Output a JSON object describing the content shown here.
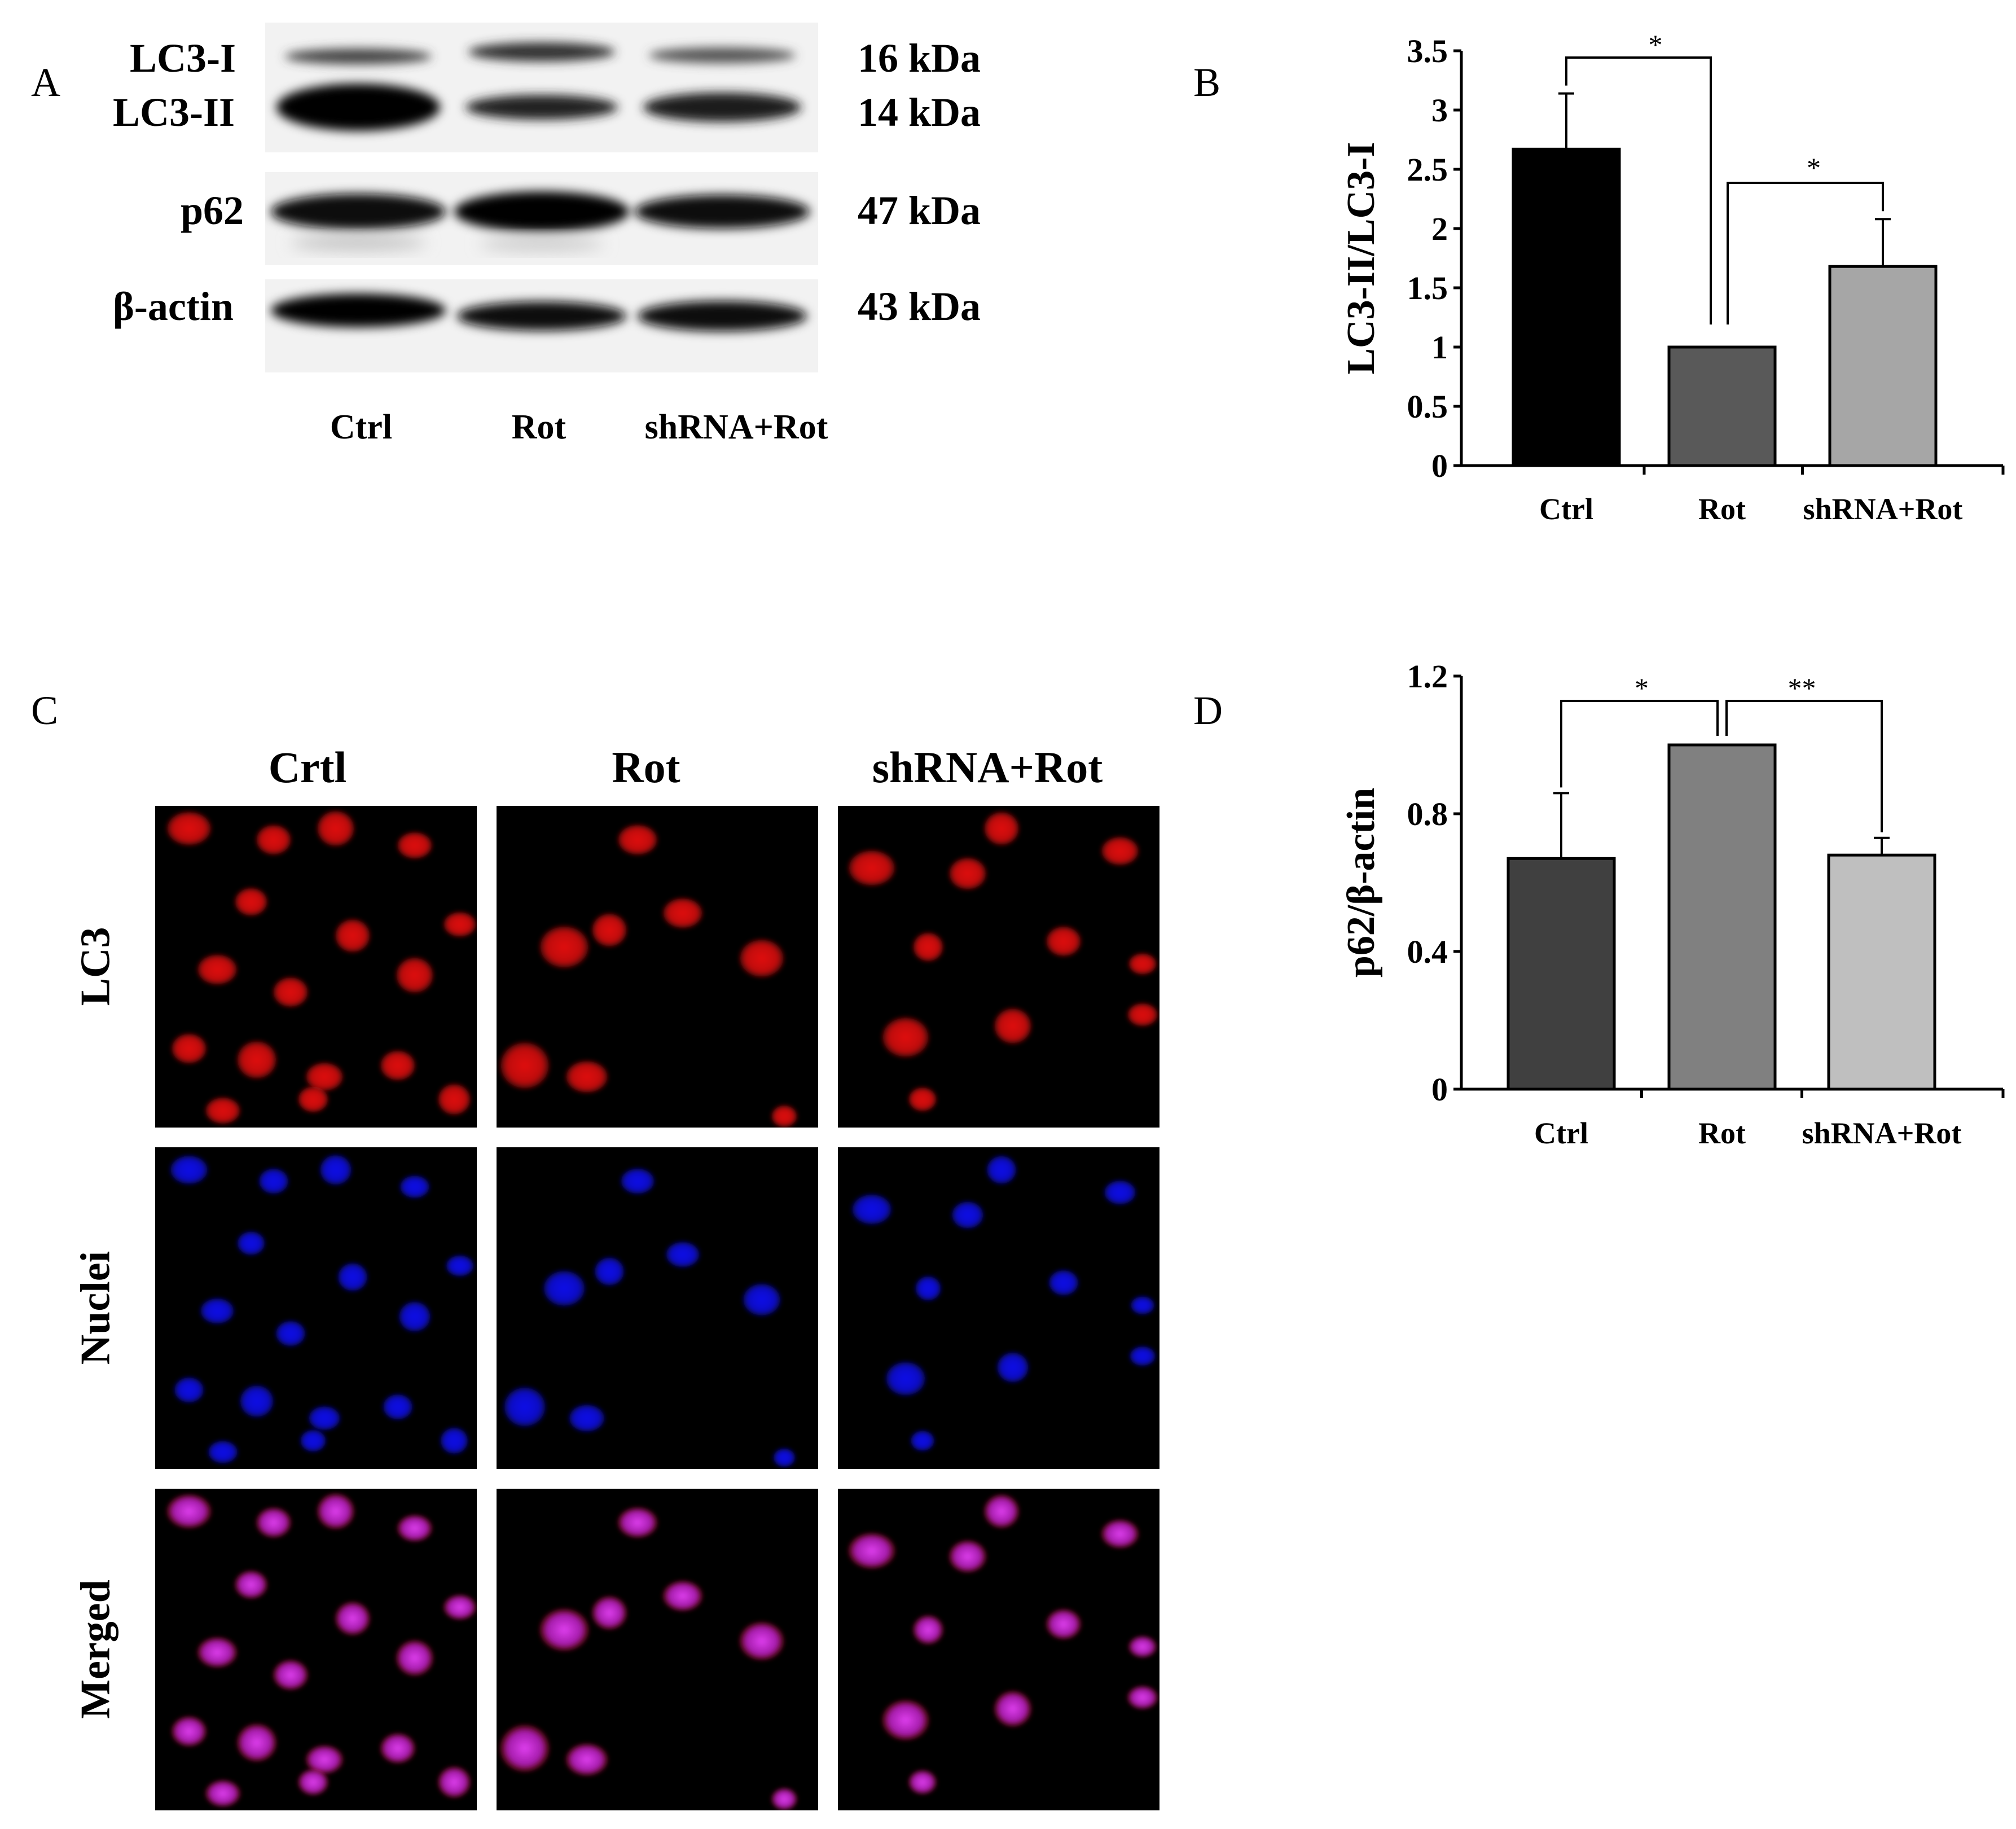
{
  "panel_letters": {
    "a": "A",
    "b": "B",
    "c": "C",
    "d": "D"
  },
  "blot": {
    "row_labels": [
      "LC3-I",
      "LC3-II",
      "p62",
      "β-actin"
    ],
    "sizes": [
      "16 kDa",
      "14 kDa",
      "47 kDa",
      "43 kDa"
    ],
    "lanes": [
      "Ctrl",
      "Rot",
      "shRNA+Rot"
    ]
  },
  "immunofluorescence": {
    "columns": [
      "Crtl",
      "Rot",
      "shRNA+Rot"
    ],
    "rows": [
      "LC3",
      "Nuclei",
      "Merged"
    ],
    "colors": {
      "lc3": "#e01010",
      "nuclei": "#1010e8",
      "merged": "#c020c8"
    }
  },
  "chart_data": [
    {
      "panel": "B",
      "type": "bar",
      "categories": [
        "Ctrl",
        "Rot",
        "shRNA+Rot"
      ],
      "values": [
        2.67,
        1.0,
        1.68
      ],
      "errors": [
        0.47,
        0.0,
        0.4
      ],
      "bar_colors": [
        "#000000",
        "#595959",
        "#a6a6a6"
      ],
      "ylabel": "LC3-II/LC3-I",
      "ylim": [
        0,
        3.5
      ],
      "yticks": [
        "0",
        "0.5",
        "1",
        "1.5",
        "2",
        "2.5",
        "3",
        "3.5"
      ],
      "ytick_values": [
        0,
        0.5,
        1,
        1.5,
        2,
        2.5,
        3,
        3.5
      ],
      "significance": [
        {
          "from": "Ctrl",
          "to": "Rot",
          "label": "*"
        },
        {
          "from": "Rot",
          "to": "shRNA+Rot",
          "label": "*"
        }
      ]
    },
    {
      "panel": "D",
      "type": "bar",
      "categories": [
        "Ctrl",
        "Rot",
        "shRNA+Rot"
      ],
      "values": [
        0.67,
        1.0,
        0.68
      ],
      "errors": [
        0.19,
        0.0,
        0.05
      ],
      "bar_colors": [
        "#404040",
        "#808080",
        "#bfbfbf"
      ],
      "ylabel": "p62/β-actin",
      "ylim": [
        0,
        1.2
      ],
      "yticks": [
        "0",
        "0.4",
        "0.8",
        "1.2"
      ],
      "ytick_values": [
        0,
        0.4,
        0.8,
        1.2
      ],
      "significance": [
        {
          "from": "Ctrl",
          "to": "Rot",
          "label": "*"
        },
        {
          "from": "Rot",
          "to": "shRNA+Rot",
          "label": "**"
        }
      ]
    }
  ]
}
